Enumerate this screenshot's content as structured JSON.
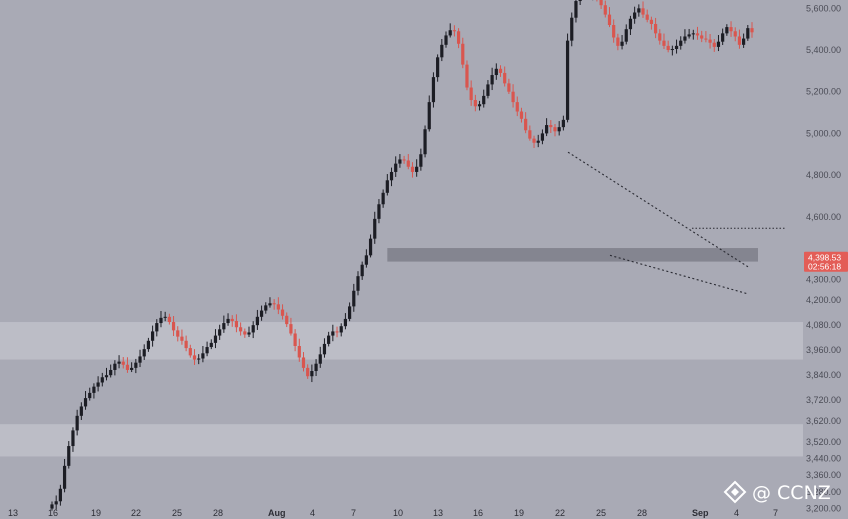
{
  "chart_data": {
    "type": "candlestick",
    "title": "",
    "xlabel": "",
    "ylabel": "",
    "ylim": [
      3150,
      5640
    ],
    "ytick_labels": [
      "5,600.00",
      "5,400.00",
      "5,200.00",
      "5,000.00",
      "4,800.00",
      "4,600.00",
      "4,300.00",
      "4,200.00",
      "4,080.00",
      "3,960.00",
      "3,840.00",
      "3,720.00",
      "3,620.00",
      "3,520.00",
      "3,440.00",
      "3,360.00",
      "3,280.00",
      "3,200.00"
    ],
    "xtick_labels": [
      "13",
      "16",
      "19",
      "22",
      "25",
      "28",
      "Aug",
      "4",
      "7",
      "10",
      "13",
      "16",
      "19",
      "22",
      "25",
      "28",
      "Sep",
      "4",
      "7"
    ],
    "last_price": "4,398.53",
    "countdown": "02:56:18",
    "zones": [
      {
        "name": "resistance-zone-gray",
        "from": 4385,
        "to": 4450,
        "start_index": 81
      },
      {
        "name": "support-zone-upper",
        "from": 3915,
        "to": 4095
      },
      {
        "name": "support-zone-lower",
        "from": 3450,
        "to": 3605
      }
    ],
    "trendlines": [
      {
        "name": "wedge-upper-line",
        "from": [
          0,
          4910
        ],
        "to": [
          1,
          4360
        ]
      },
      {
        "name": "wedge-lower-line",
        "from": [
          0,
          4415
        ],
        "to": [
          1,
          4230
        ]
      },
      {
        "name": "horizontal-resistance-line",
        "value": 4545
      }
    ],
    "candles_start": 3200,
    "candle_moves": [
      20,
      15,
      60,
      110,
      95,
      75,
      70,
      45,
      40,
      25,
      30,
      20,
      25,
      10,
      25,
      30,
      10,
      -15,
      -25,
      10,
      25,
      30,
      35,
      40,
      45,
      40,
      25,
      5,
      -25,
      -40,
      -30,
      -20,
      -35,
      -35,
      -20,
      5,
      25,
      30,
      20,
      35,
      30,
      30,
      20,
      -10,
      -30,
      -20,
      -15,
      10,
      35,
      40,
      30,
      25,
      10,
      -5,
      -25,
      -30,
      -40,
      -45,
      -60,
      -55,
      -50,
      -40,
      25,
      35,
      45,
      50,
      40,
      20,
      -5,
      30,
      35,
      60,
      75,
      70,
      55,
      45,
      80,
      95,
      70,
      55,
      60,
      40,
      40,
      20,
      -5,
      -30,
      -25,
      25,
      60,
      120,
      130,
      120,
      95,
      60,
      45,
      25,
      -5,
      -60,
      -100,
      -110,
      -60,
      -30,
      10,
      40,
      55,
      45,
      30,
      -20,
      -50,
      -40,
      -50,
      -45,
      -35,
      -55,
      -40,
      -20,
      10,
      35,
      40,
      -10,
      -20,
      20,
      35,
      380,
      110,
      80,
      30,
      -10,
      10,
      20,
      -30,
      -40,
      -45,
      -50,
      -60,
      -40,
      20,
      60,
      50,
      30,
      20,
      -30,
      -25,
      -20,
      -45,
      -35,
      -25,
      -20,
      5,
      15,
      25,
      20,
      10,
      5,
      -10,
      -15,
      -5,
      -15,
      -20,
      25,
      40,
      30,
      -20,
      -25,
      -40,
      30,
      50,
      -20
    ]
  },
  "watermark": {
    "text": "@ CCNZ"
  },
  "colors": {
    "background": "#a9aab5",
    "up": "#1c1d24",
    "down": "#d9564f",
    "zone": "#bcbdc6",
    "gray_zone": "#7e7f89",
    "price_box": "#e35d57"
  }
}
